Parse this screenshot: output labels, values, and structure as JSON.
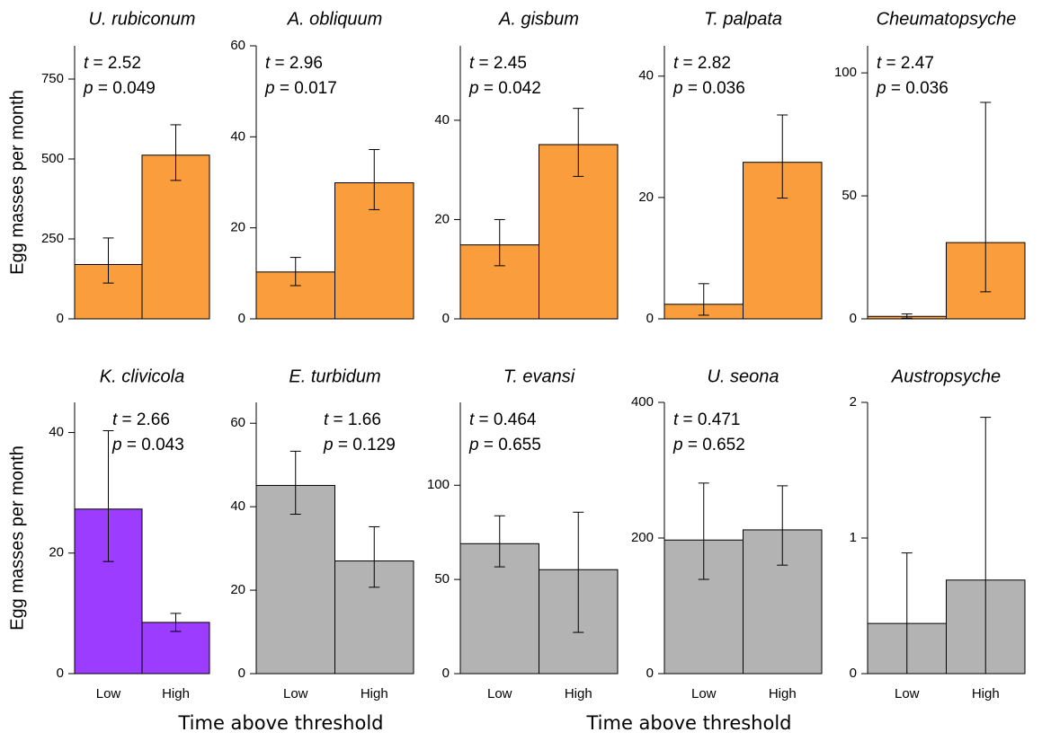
{
  "chart_data": [
    {
      "type": "bar",
      "title": "U. rubiconum",
      "ylabel": "Egg masses per month",
      "categories": [
        null,
        null
      ],
      "values": [
        170,
        512
      ],
      "error_lower": [
        112,
        433
      ],
      "error_upper": [
        253,
        607
      ],
      "color": "#fa9d3c",
      "ylim": [
        0,
        854
      ],
      "yticks": [
        0,
        250,
        500,
        750
      ],
      "annotations": [
        "t = 2.52",
        "p = 0.049"
      ]
    },
    {
      "type": "bar",
      "title": "A. obliquum",
      "categories": [
        null,
        null
      ],
      "values": [
        10.3,
        29.9
      ],
      "error_lower": [
        7.3,
        24.0
      ],
      "error_upper": [
        13.5,
        37.2
      ],
      "color": "#fa9d3c",
      "ylim": [
        0,
        60
      ],
      "yticks": [
        0,
        20,
        40,
        60
      ],
      "annotations": [
        "t = 2.96",
        "p = 0.017"
      ]
    },
    {
      "type": "bar",
      "title": "A. gisbum",
      "categories": [
        null,
        null
      ],
      "values": [
        14.9,
        35.1
      ],
      "error_lower": [
        10.7,
        28.7
      ],
      "error_upper": [
        20,
        42.4
      ],
      "color": "#fa9d3c",
      "ylim": [
        0,
        55
      ],
      "yticks": [
        0,
        20,
        40
      ],
      "annotations": [
        "t = 2.45",
        "p = 0.042"
      ]
    },
    {
      "type": "bar",
      "title": "T. palpata",
      "categories": [
        null,
        null
      ],
      "values": [
        2.4,
        25.8
      ],
      "error_lower": [
        0.6,
        19.9
      ],
      "error_upper": [
        5.8,
        33.6
      ],
      "color": "#fa9d3c",
      "ylim": [
        0,
        45
      ],
      "yticks": [
        0,
        20,
        40
      ],
      "annotations": [
        "t = 2.82",
        "p = 0.036"
      ]
    },
    {
      "type": "bar",
      "title": "Cheumatopsyche",
      "categories": [
        null,
        null
      ],
      "values": [
        1,
        31
      ],
      "error_lower": [
        0.3,
        11
      ],
      "error_upper": [
        2,
        88
      ],
      "color": "#fa9d3c",
      "ylim": [
        0,
        111
      ],
      "yticks": [
        0,
        50,
        100
      ],
      "annotations": [
        "t = 2.47",
        "p = 0.036"
      ]
    },
    {
      "type": "bar",
      "title": "K. clivicola",
      "ylabel": "Egg masses per month",
      "categories": [
        "Low",
        "High"
      ],
      "values": [
        27.3,
        8.5
      ],
      "error_lower": [
        18.6,
        7
      ],
      "error_upper": [
        40.3,
        10
      ],
      "color": "#9b3cff",
      "ylim": [
        0,
        45
      ],
      "yticks": [
        0,
        20,
        40
      ],
      "annotations": [
        "t = 2.66",
        "p = 0.043"
      ]
    },
    {
      "type": "bar",
      "title": "E. turbidum",
      "xlabel": "Time above threshold",
      "categories": [
        "Low",
        "High"
      ],
      "values": [
        45.1,
        27
      ],
      "error_lower": [
        38.2,
        20.7
      ],
      "error_upper": [
        53.3,
        35.2
      ],
      "color": "#b3b3b3",
      "ylim": [
        0,
        65
      ],
      "yticks": [
        0,
        20,
        40,
        60
      ],
      "annotations": [
        "t = 1.66",
        "p = 0.129"
      ]
    },
    {
      "type": "bar",
      "title": "T. evansi",
      "categories": [
        "Low",
        "High"
      ],
      "values": [
        69,
        55.2
      ],
      "error_lower": [
        56.7,
        21.9
      ],
      "error_upper": [
        83.8,
        85.7
      ],
      "color": "#b3b3b3",
      "ylim": [
        0,
        144
      ],
      "yticks": [
        0,
        50,
        100
      ],
      "annotations": [
        "t = 0.464",
        "p = 0.655"
      ]
    },
    {
      "type": "bar",
      "title": "U. seona",
      "xlabel": "Time above threshold",
      "categories": [
        "Low",
        "High"
      ],
      "values": [
        197,
        212
      ],
      "error_lower": [
        139,
        160
      ],
      "error_upper": [
        281,
        277
      ],
      "color": "#b3b3b3",
      "ylim": [
        0,
        400
      ],
      "yticks": [
        0,
        200,
        400
      ],
      "annotations": [
        "t = 0.471",
        "p = 0.652"
      ]
    },
    {
      "type": "bar",
      "title": "Austropsyche",
      "categories": [
        "Low",
        "High"
      ],
      "values": [
        0.37,
        0.69
      ],
      "error_lower": [
        0,
        0
      ],
      "error_upper": [
        0.89,
        1.89
      ],
      "color": "#b3b3b3",
      "ylim": [
        0,
        2
      ],
      "yticks": [
        0,
        1,
        2
      ],
      "annotations": []
    }
  ]
}
